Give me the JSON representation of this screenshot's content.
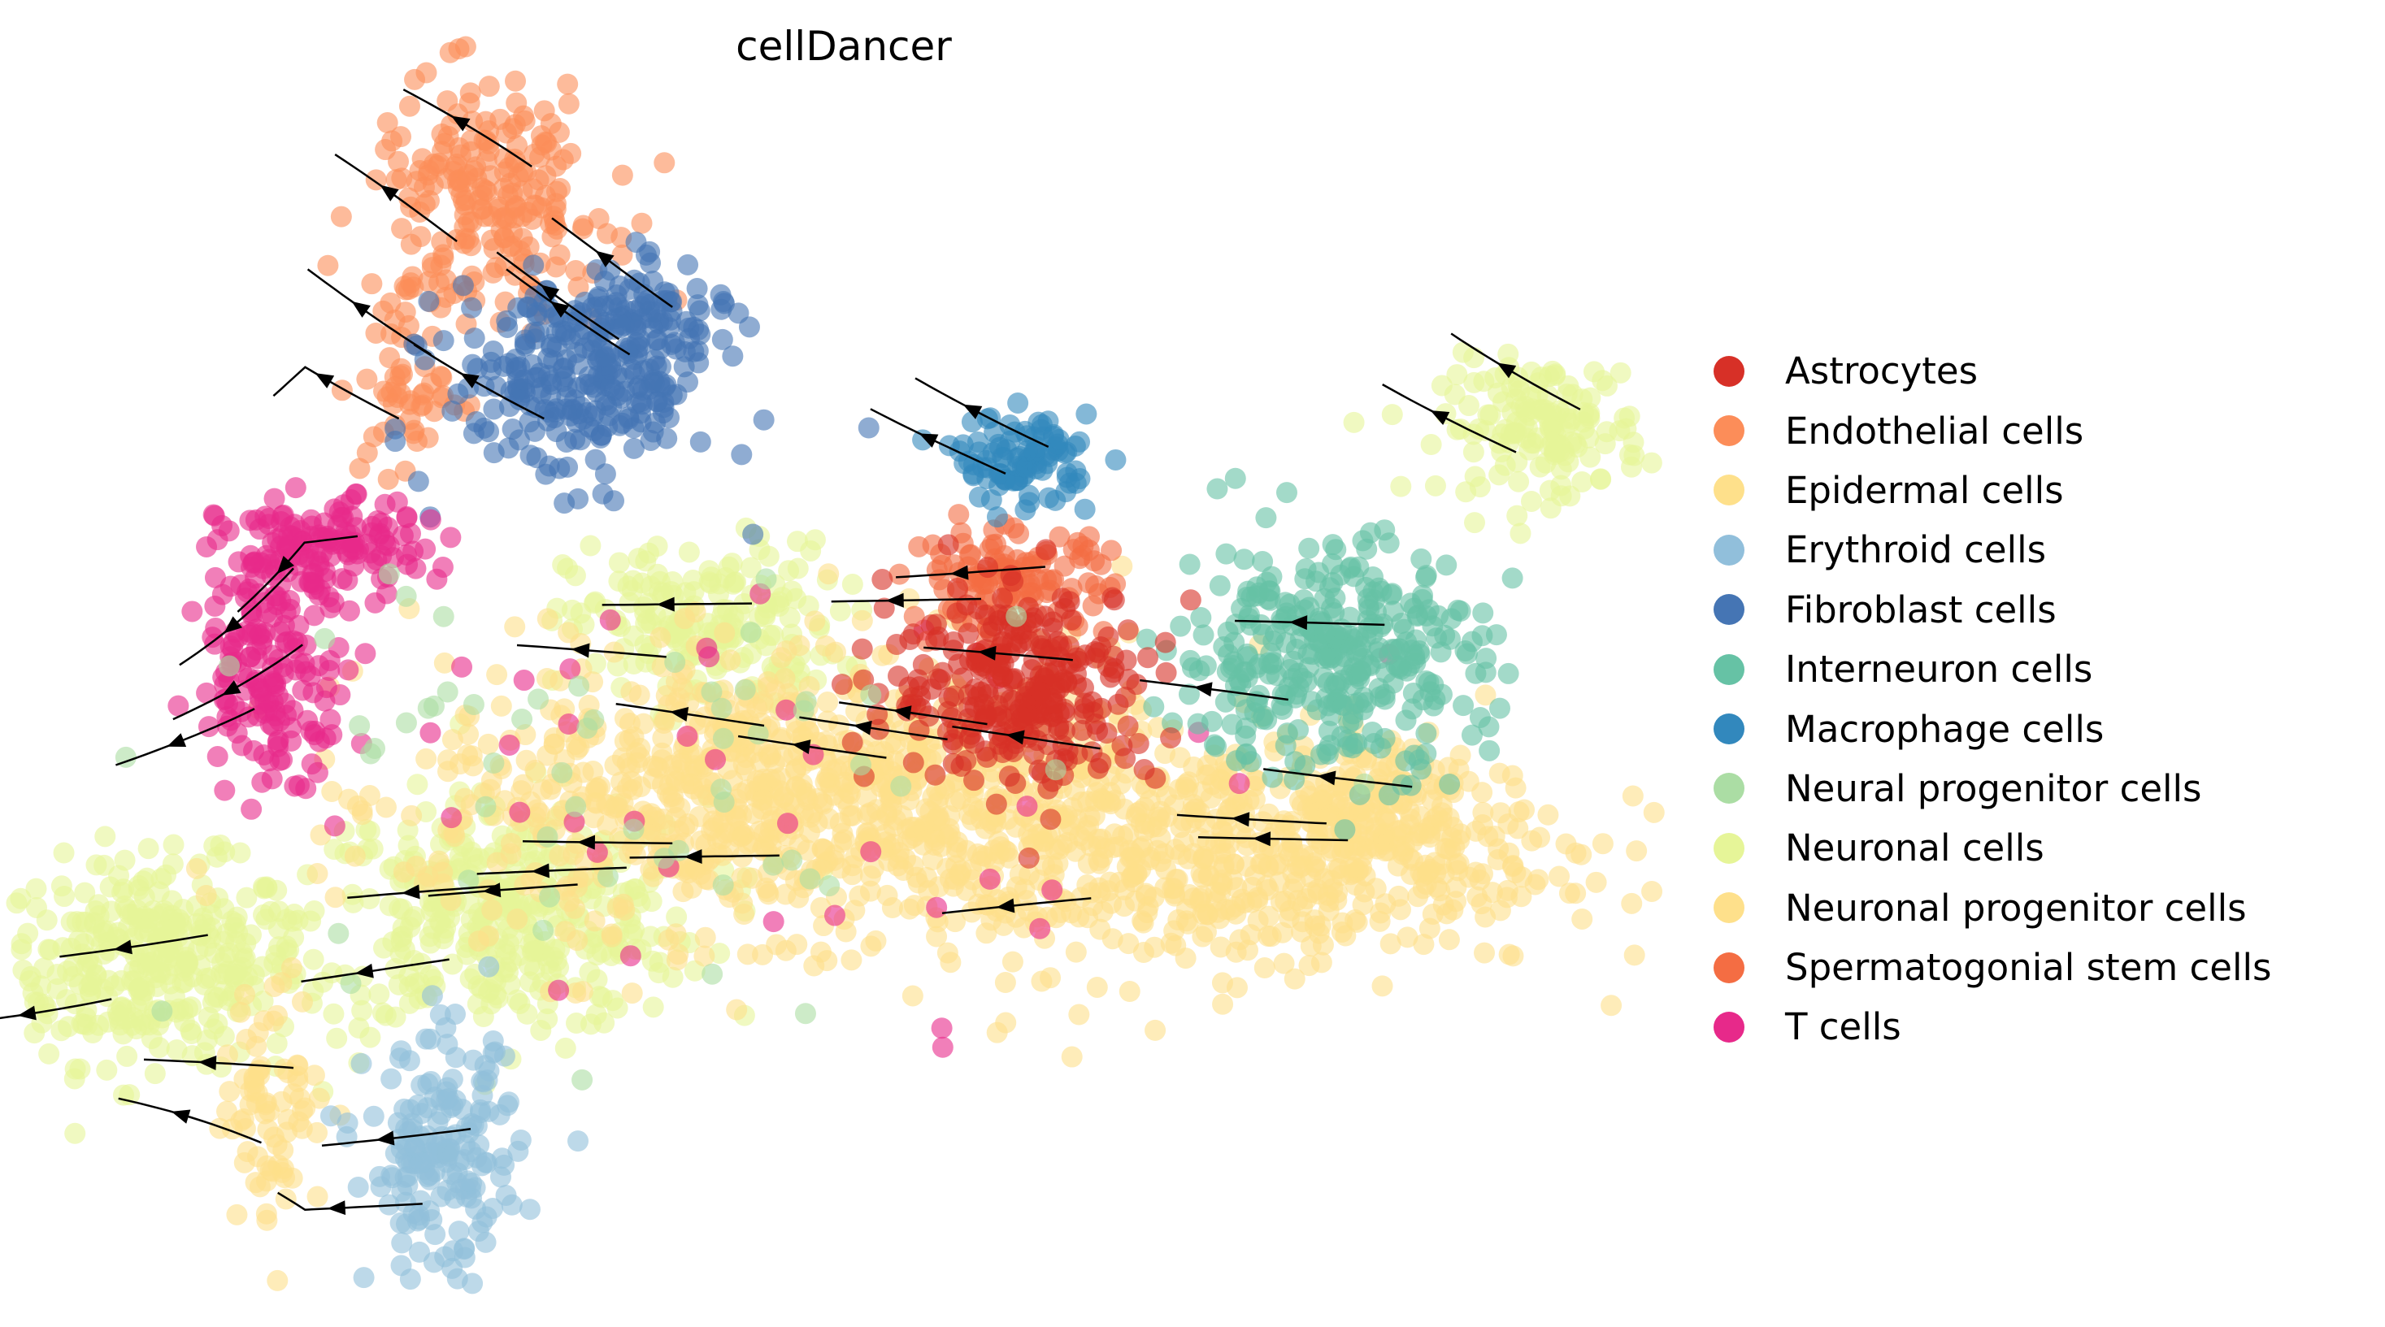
{
  "chart_data": {
    "type": "scatter",
    "title": "cellDancer",
    "xlabel": "",
    "ylabel": "",
    "axes_visible": false,
    "grid": false,
    "xlim": [
      0,
      110
    ],
    "ylim": [
      0,
      87
    ],
    "legend_placement": "right",
    "legend": [
      {
        "label": "Astrocytes",
        "color": "#d73027"
      },
      {
        "label": "Endothelial cells",
        "color": "#fc8d59"
      },
      {
        "label": "Epidermal cells",
        "color": "#fee08b"
      },
      {
        "label": "Erythroid cells",
        "color": "#91bfdb"
      },
      {
        "label": "Fibroblast cells",
        "color": "#4575b4"
      },
      {
        "label": "Interneuron cells",
        "color": "#66c2a5"
      },
      {
        "label": "Macrophage cells",
        "color": "#3288bd"
      },
      {
        "label": "Neural progenitor cells",
        "color": "#abdda4"
      },
      {
        "label": "Neuronal cells",
        "color": "#e6f598"
      },
      {
        "label": "Neuronal progenitor cells",
        "color": "#fee08b"
      },
      {
        "label": "Spermatogonial stem cells",
        "color": "#f46d43"
      },
      {
        "label": "T cells",
        "color": "#e7298a"
      }
    ],
    "clusters": [
      {
        "type": "Neuronal cells",
        "center": [
          10,
          24
        ],
        "spread": [
          9,
          6
        ],
        "n": 350
      },
      {
        "type": "Neuronal cells",
        "center": [
          33,
          27
        ],
        "spread": [
          12,
          7
        ],
        "n": 400
      },
      {
        "type": "Neuronal cells",
        "center": [
          46,
          46
        ],
        "spread": [
          8,
          5
        ],
        "n": 200
      },
      {
        "type": "Neuronal cells",
        "center": [
          101,
          59
        ],
        "spread": [
          6,
          4
        ],
        "n": 150
      },
      {
        "type": "Neuronal progenitor cells",
        "center": [
          50,
          35
        ],
        "spread": [
          20,
          8
        ],
        "n": 700
      },
      {
        "type": "Neuronal progenitor cells",
        "center": [
          78,
          31
        ],
        "spread": [
          22,
          7
        ],
        "n": 600
      },
      {
        "type": "Neuronal progenitor cells",
        "center": [
          18,
          15
        ],
        "spread": [
          3,
          7
        ],
        "n": 80
      },
      {
        "type": "Neuronal progenitor cells",
        "center": [
          90,
          34
        ],
        "spread": [
          6,
          5
        ],
        "n": 150
      },
      {
        "type": "Epidermal cells",
        "center": [
          60,
          35
        ],
        "spread": [
          30,
          10
        ],
        "n": 200
      },
      {
        "type": "Endothelial cells",
        "center": [
          32,
          74
        ],
        "spread": [
          7,
          7
        ],
        "n": 220
      },
      {
        "type": "Endothelial cells",
        "center": [
          27,
          62
        ],
        "spread": [
          3,
          6
        ],
        "n": 60
      },
      {
        "type": "Fibroblast cells",
        "center": [
          38,
          62
        ],
        "spread": [
          8,
          6
        ],
        "n": 260
      },
      {
        "type": "Fibroblast cells",
        "center": [
          42,
          66
        ],
        "spread": [
          5,
          3
        ],
        "n": 80
      },
      {
        "type": "T cells",
        "center": [
          21,
          51
        ],
        "spread": [
          6,
          3
        ],
        "n": 150
      },
      {
        "type": "T cells",
        "center": [
          18,
          43
        ],
        "spread": [
          4.5,
          6
        ],
        "n": 160
      },
      {
        "type": "T cells",
        "center": [
          50,
          35
        ],
        "spread": [
          30,
          12
        ],
        "n": 40
      },
      {
        "type": "Interneuron cells",
        "center": [
          87,
          44
        ],
        "spread": [
          9,
          7
        ],
        "n": 350
      },
      {
        "type": "Spermatogonial stem cells",
        "center": [
          66,
          49
        ],
        "spread": [
          6,
          3
        ],
        "n": 120
      },
      {
        "type": "Astrocytes",
        "center": [
          67,
          42
        ],
        "spread": [
          8,
          6
        ],
        "n": 300
      },
      {
        "type": "Macrophage cells",
        "center": [
          67,
          57
        ],
        "spread": [
          4,
          2.5
        ],
        "n": 100
      },
      {
        "type": "Erythroid cells",
        "center": [
          29,
          11
        ],
        "spread": [
          4.5,
          7
        ],
        "n": 180
      },
      {
        "type": "Neural progenitor cells",
        "center": [
          40,
          35
        ],
        "spread": [
          25,
          15
        ],
        "n": 60
      }
    ]
  }
}
